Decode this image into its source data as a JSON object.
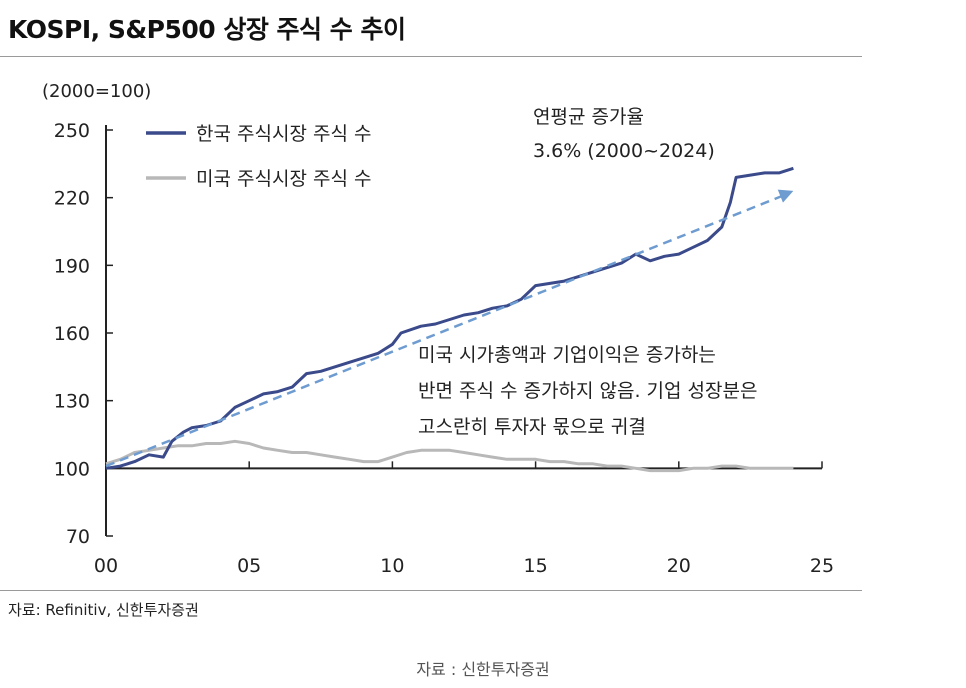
{
  "header": {
    "title": "KOSPI, S&P500 상장 주식 수 추이"
  },
  "source_note": "자료: Refinitiv, 신한투자증권",
  "caption": "자료 : 신한투자증권",
  "colors": {
    "korea": "#3a4a8a",
    "us": "#b8b8b8",
    "trend": "#6e9cd0",
    "axis": "#222222"
  },
  "chart_data": {
    "type": "line",
    "unit_label": "(2000=100)",
    "xlim": [
      0,
      25
    ],
    "ylim": [
      70,
      250
    ],
    "x_ticks": [
      0,
      5,
      10,
      15,
      20,
      25
    ],
    "x_tick_labels": [
      "00",
      "05",
      "10",
      "15",
      "20",
      "25"
    ],
    "y_ticks": [
      70,
      100,
      130,
      160,
      190,
      220,
      250
    ],
    "y_tick_labels": [
      "70",
      "100",
      "130",
      "160",
      "190",
      "220",
      "250"
    ],
    "legend": {
      "placement": "top-left"
    },
    "series": [
      {
        "name": "한국 주식시장 주식 수",
        "color": "#3a4a8a",
        "points": [
          [
            0,
            100
          ],
          [
            0.5,
            101
          ],
          [
            1,
            103
          ],
          [
            1.5,
            106
          ],
          [
            2,
            105
          ],
          [
            2.3,
            112
          ],
          [
            2.7,
            116
          ],
          [
            3,
            118
          ],
          [
            3.5,
            119
          ],
          [
            4,
            121
          ],
          [
            4.5,
            127
          ],
          [
            5,
            130
          ],
          [
            5.5,
            133
          ],
          [
            6,
            134
          ],
          [
            6.5,
            136
          ],
          [
            7,
            142
          ],
          [
            7.5,
            143
          ],
          [
            8,
            145
          ],
          [
            8.5,
            147
          ],
          [
            9,
            149
          ],
          [
            9.5,
            151
          ],
          [
            10,
            155
          ],
          [
            10.3,
            160
          ],
          [
            11,
            163
          ],
          [
            11.5,
            164
          ],
          [
            12,
            166
          ],
          [
            12.5,
            168
          ],
          [
            13,
            169
          ],
          [
            13.5,
            171
          ],
          [
            14,
            172
          ],
          [
            14.5,
            175
          ],
          [
            15,
            181
          ],
          [
            15.5,
            182
          ],
          [
            16,
            183
          ],
          [
            16.5,
            185
          ],
          [
            17,
            187
          ],
          [
            17.5,
            189
          ],
          [
            18,
            191
          ],
          [
            18.5,
            195
          ],
          [
            19,
            192
          ],
          [
            19.5,
            194
          ],
          [
            20,
            195
          ],
          [
            20.5,
            198
          ],
          [
            21,
            201
          ],
          [
            21.5,
            207
          ],
          [
            21.8,
            218
          ],
          [
            22,
            229
          ],
          [
            22.5,
            230
          ],
          [
            23,
            231
          ],
          [
            23.5,
            231
          ],
          [
            24,
            233
          ]
        ]
      },
      {
        "name": "미국 주식시장 주식 수",
        "color": "#b8b8b8",
        "points": [
          [
            0,
            102
          ],
          [
            0.5,
            104
          ],
          [
            1,
            107
          ],
          [
            1.5,
            108
          ],
          [
            2,
            109
          ],
          [
            2.5,
            110
          ],
          [
            3,
            110
          ],
          [
            3.5,
            111
          ],
          [
            4,
            111
          ],
          [
            4.5,
            112
          ],
          [
            5,
            111
          ],
          [
            5.5,
            109
          ],
          [
            6,
            108
          ],
          [
            6.5,
            107
          ],
          [
            7,
            107
          ],
          [
            7.5,
            106
          ],
          [
            8,
            105
          ],
          [
            8.5,
            104
          ],
          [
            9,
            103
          ],
          [
            9.5,
            103
          ],
          [
            10,
            105
          ],
          [
            10.5,
            107
          ],
          [
            11,
            108
          ],
          [
            11.5,
            108
          ],
          [
            12,
            108
          ],
          [
            12.5,
            107
          ],
          [
            13,
            106
          ],
          [
            13.5,
            105
          ],
          [
            14,
            104
          ],
          [
            14.5,
            104
          ],
          [
            15,
            104
          ],
          [
            15.5,
            103
          ],
          [
            16,
            103
          ],
          [
            16.5,
            102
          ],
          [
            17,
            102
          ],
          [
            17.5,
            101
          ],
          [
            18,
            101
          ],
          [
            18.5,
            100
          ],
          [
            19,
            99
          ],
          [
            19.5,
            99
          ],
          [
            20,
            99
          ],
          [
            20.5,
            100
          ],
          [
            21,
            100
          ],
          [
            21.5,
            101
          ],
          [
            22,
            101
          ],
          [
            22.5,
            100
          ],
          [
            23,
            100
          ],
          [
            23.5,
            100
          ],
          [
            24,
            100
          ]
        ]
      }
    ],
    "trendline": {
      "from": [
        0,
        101
      ],
      "to": [
        24,
        223
      ]
    },
    "annotations": [
      {
        "id": "cagr",
        "lines": [
          "연평균 증가율",
          "3.6% (2000~2024)"
        ]
      },
      {
        "id": "comment",
        "lines": [
          "미국 시가총액과 기업이익은 증가하는",
          "반면 주식 수 증가하지 않음. 기업 성장분은",
          "고스란히 투자자 몫으로 귀결"
        ]
      }
    ]
  }
}
